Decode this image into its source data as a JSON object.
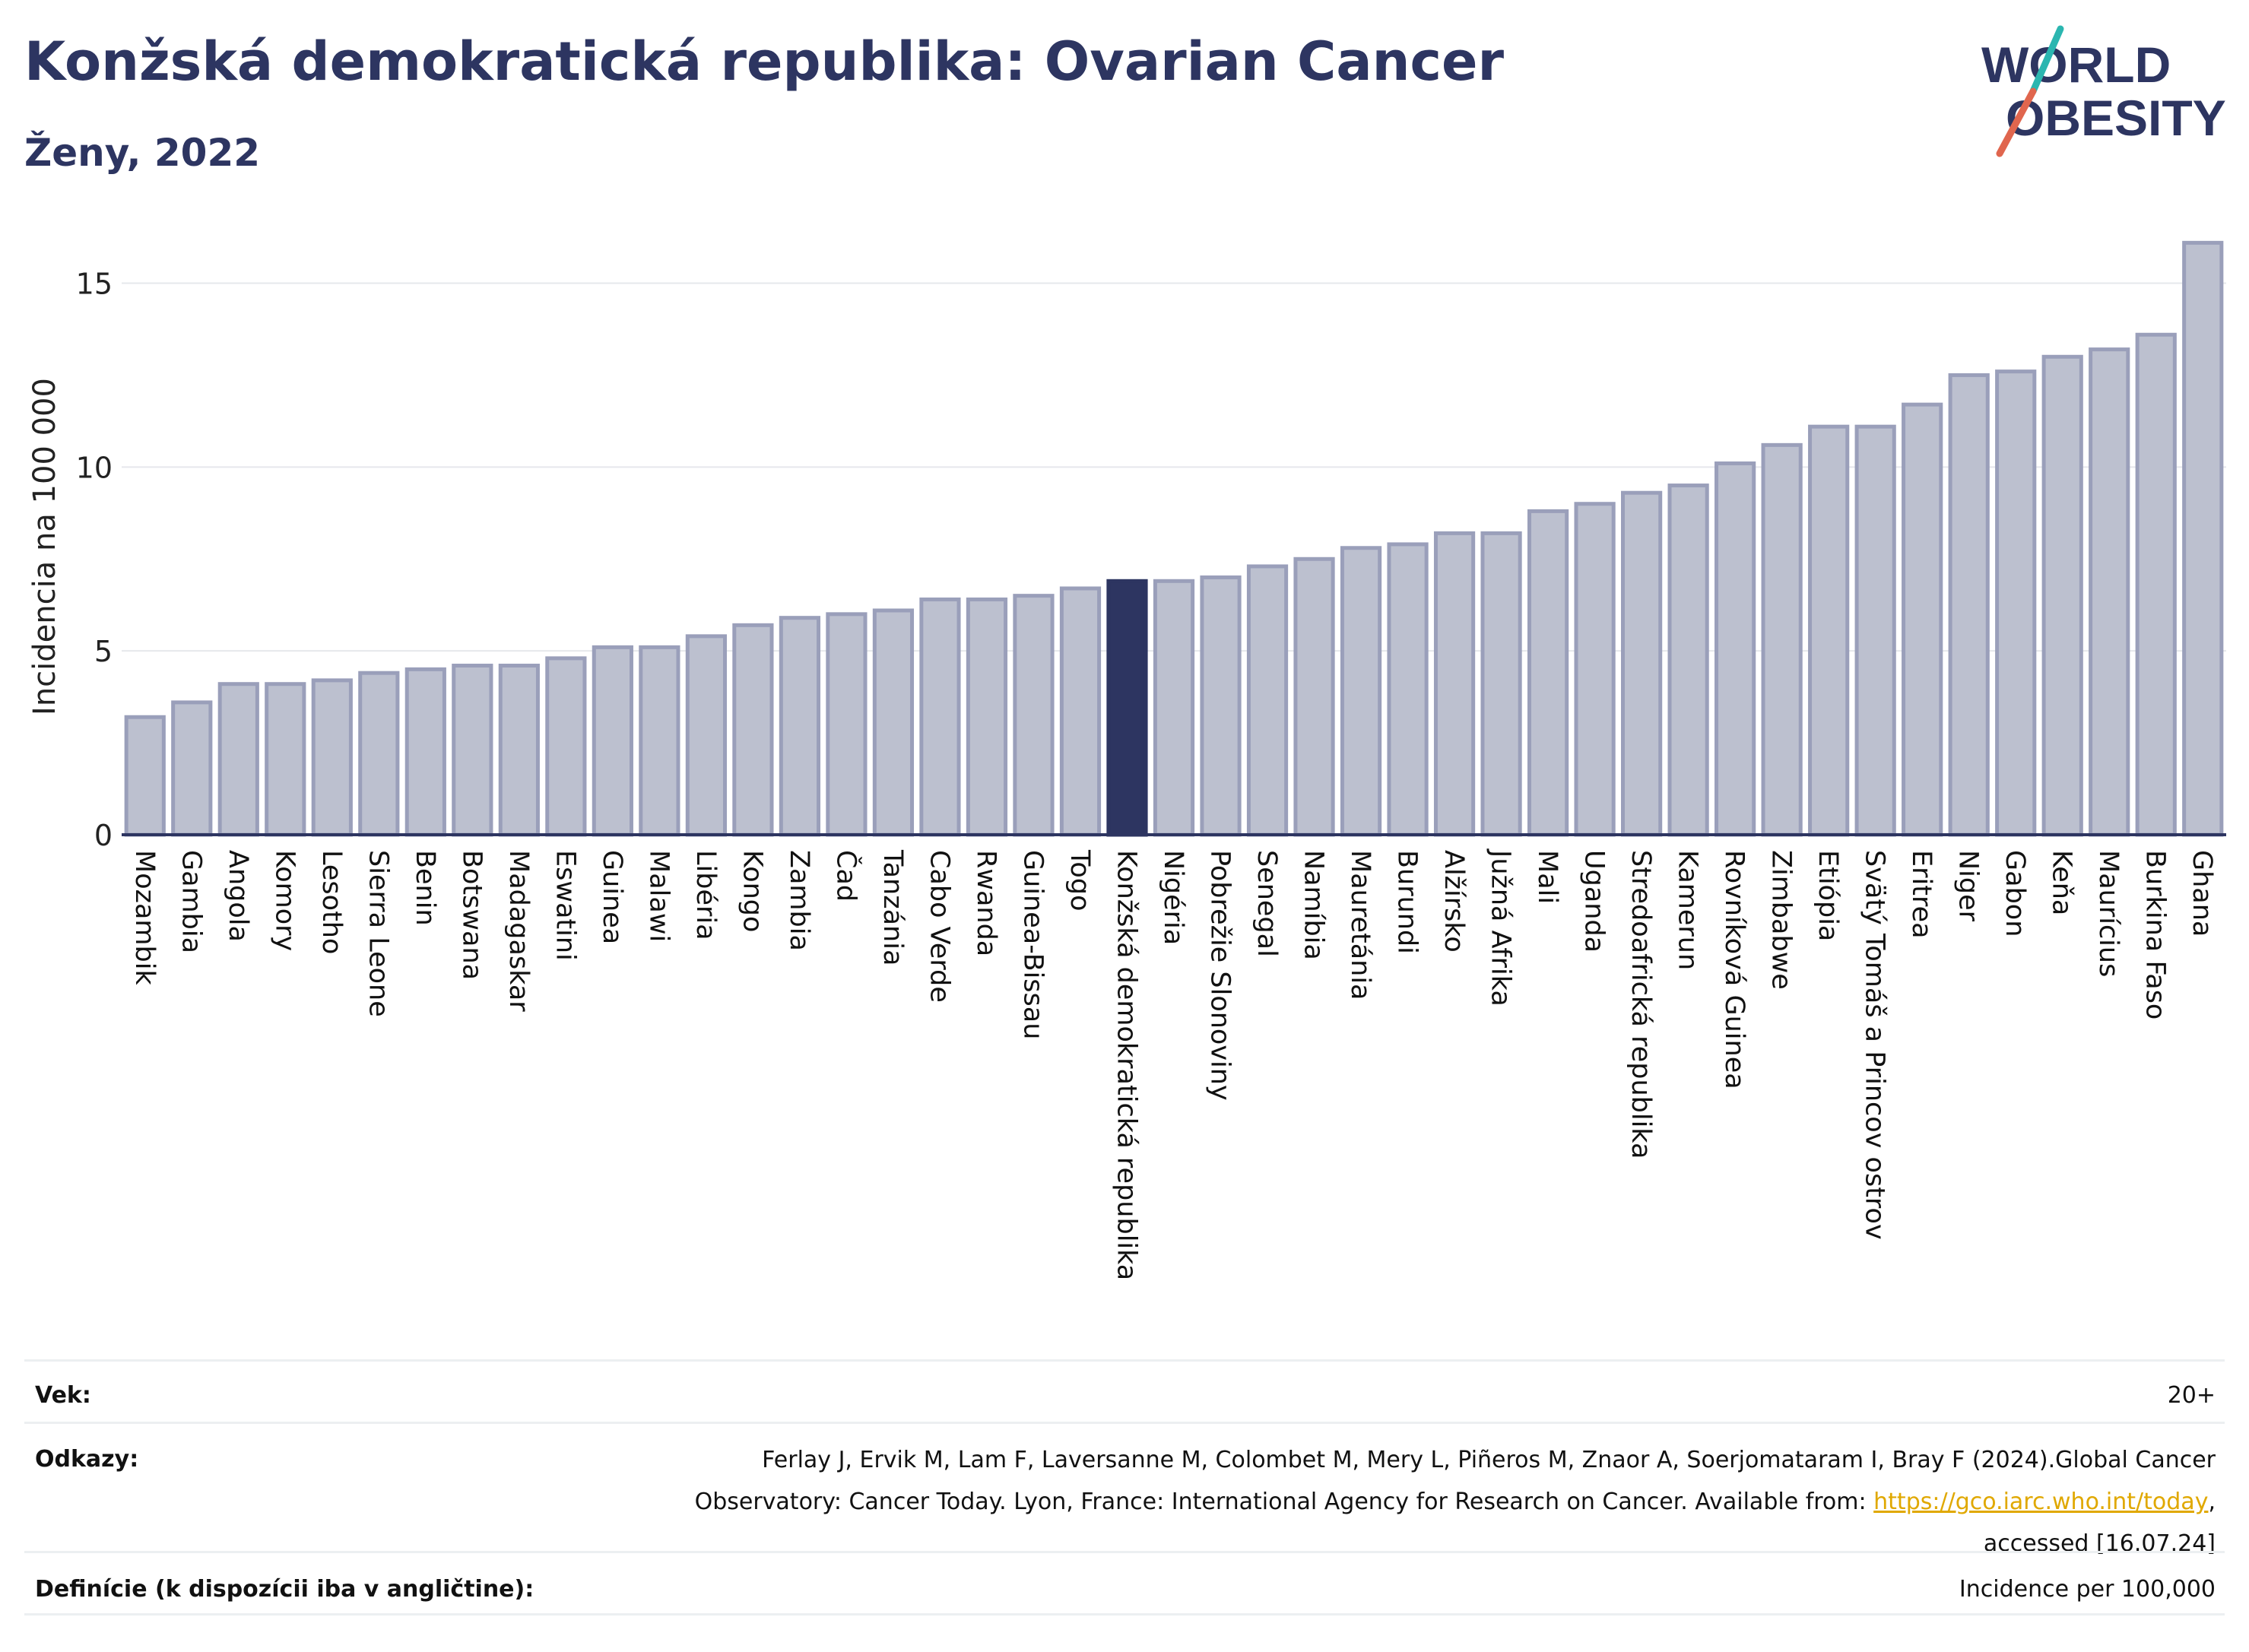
{
  "header": {
    "title": "Konžská demokratická republika: Ovarian Cancer",
    "subtitle": "Ženy, 2022"
  },
  "logo": {
    "line1": "WORLD",
    "line2": "OBESITY",
    "accent_colors": [
      "#2bb6b0",
      "#e0664e"
    ]
  },
  "colors": {
    "bar": "#bcc0cf",
    "bar_border": "#9a9fba",
    "highlight": "#2d3561",
    "title": "#2d3561",
    "grid": "#e6e8ec"
  },
  "chart_data": {
    "type": "bar",
    "title": "Konžská demokratická republika: Ovarian Cancer",
    "subtitle": "Ženy, 2022",
    "ylabel": "Incidencia na 100 000",
    "xlabel": "",
    "ylim": [
      0,
      16.5
    ],
    "yticks": [
      0,
      5,
      10,
      15
    ],
    "grid": true,
    "highlight": "Konžská demokratická republika",
    "categories": [
      "Mozambik",
      "Gambia",
      "Angola",
      "Komory",
      "Lesotho",
      "Sierra Leone",
      "Benin",
      "Botswana",
      "Madagaskar",
      "Eswatini",
      "Guinea",
      "Malawi",
      "Libéria",
      "Kongo",
      "Zambia",
      "Čad",
      "Tanzánia",
      "Cabo Verde",
      "Rwanda",
      "Guinea-Bissau",
      "Togo",
      "Konžská demokratická republika",
      "Nigéria",
      "Pobrežie Slonoviny",
      "Senegal",
      "Namíbia",
      "Mauretánia",
      "Burundi",
      "Alžírsko",
      "Južná Afrika",
      "Mali",
      "Uganda",
      "Stredoafrická republika",
      "Kamerun",
      "Rovníková Guinea",
      "Zimbabwe",
      "Etiópia",
      "Svätý Tomáš a Princov ostrov",
      "Eritrea",
      "Niger",
      "Gabon",
      "Keňa",
      "Maurícius",
      "Burkina Faso",
      "Ghana"
    ],
    "values": [
      3.2,
      3.6,
      4.1,
      4.1,
      4.2,
      4.4,
      4.5,
      4.6,
      4.6,
      4.8,
      5.1,
      5.1,
      5.4,
      5.7,
      5.9,
      6.0,
      6.1,
      6.4,
      6.4,
      6.5,
      6.7,
      6.9,
      6.9,
      7.0,
      7.3,
      7.5,
      7.8,
      7.9,
      8.2,
      8.2,
      8.8,
      9.0,
      9.3,
      9.5,
      10.1,
      10.6,
      11.1,
      11.1,
      11.7,
      12.5,
      12.6,
      13.0,
      13.2,
      13.6,
      16.1
    ]
  },
  "meta": {
    "age_label": "Vek:",
    "age_value": "20+",
    "refs_label": "Odkazy:",
    "refs_line1": "Ferlay J, Ervik M, Lam F, Laversanne M, Colombet M, Mery L, Piñeros M, Znaor A, Soerjomataram I, Bray F (2024).Global Cancer",
    "refs_line2_pre": "Observatory: Cancer Today. Lyon, France: International Agency for Research on Cancer. Available from: ",
    "refs_link": "https://gco.iarc.who.int/today",
    "refs_line2_post": ",",
    "refs_line3": "accessed [16.07.24]",
    "def_label": "Definície (k dispozícii iba v angličtine):",
    "def_value": "Incidence per 100,000"
  }
}
